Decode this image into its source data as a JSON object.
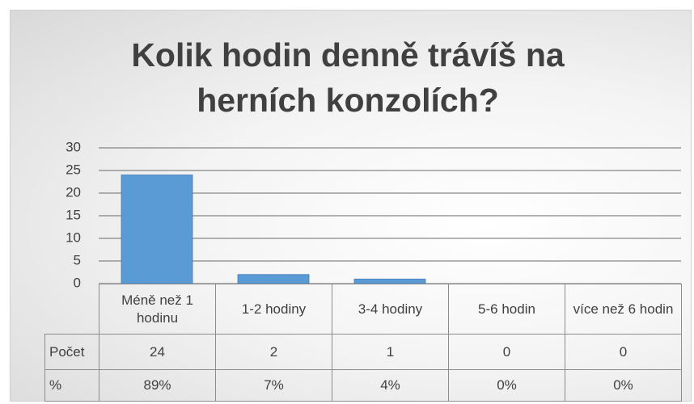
{
  "chart_data": {
    "type": "bar",
    "title": "Kolik hodin denně trávíš na herních konzolích?",
    "categories": [
      "Méně než 1 hodinu",
      "1-2 hodiny",
      "3-4 hodiny",
      "5-6 hodin",
      "více než 6 hodin"
    ],
    "series": [
      {
        "name": "Počet",
        "color": "#5b9bd5",
        "values": [
          24,
          2,
          1,
          0,
          0
        ]
      }
    ],
    "data_table": {
      "rows": [
        {
          "name": "%",
          "values": [
            89,
            7,
            4,
            0,
            0
          ],
          "value_labels": [
            "89%",
            "7%",
            "4%",
            "0%",
            "0%"
          ]
        }
      ]
    },
    "ylim": [
      0,
      30
    ],
    "yticks": [
      0,
      5,
      10,
      15,
      20,
      25,
      30
    ],
    "grid": true
  }
}
